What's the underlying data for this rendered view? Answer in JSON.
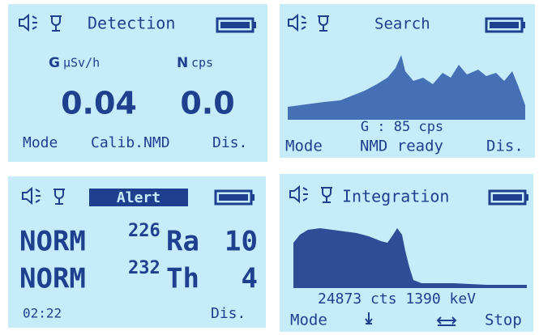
{
  "screens": [
    {
      "title": "Detection",
      "channels": [
        {
          "name": "G",
          "unit": "µSv/h",
          "reading": "0.04"
        },
        {
          "name": "N",
          "unit": "cps",
          "reading": "0.0"
        }
      ],
      "footer": [
        "Mode",
        "Calib.NMD",
        "Dis."
      ]
    },
    {
      "title": "Search",
      "readout": "G :  85 cps",
      "footer": [
        "Mode",
        "NMD ready",
        "Dis."
      ]
    },
    {
      "title": "Alert",
      "rows": [
        [
          "NORM",
          "226",
          "Ra",
          "10"
        ],
        [
          "NORM",
          "232",
          "Th",
          "4"
        ]
      ],
      "footer": [
        "02:22",
        "Dis."
      ]
    },
    {
      "title": "Integration",
      "readout": "24873 cts 1390 keV",
      "footer": [
        "Mode",
        "Stop"
      ]
    }
  ]
}
